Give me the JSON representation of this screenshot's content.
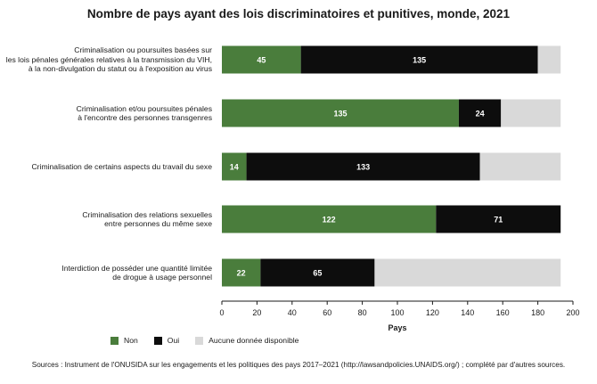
{
  "chart_data": {
    "type": "bar",
    "orientation": "horizontal",
    "stacked": true,
    "title": "Nombre de pays ayant des lois discriminatoires et punitives, monde, 2021",
    "xlabel": "Pays",
    "ylabel": "",
    "xlim": [
      0,
      200
    ],
    "xticks": [
      "0",
      "20",
      "40",
      "60",
      "80",
      "100",
      "120",
      "140",
      "160",
      "180",
      "200"
    ],
    "grid": false,
    "legend_position": "bottom",
    "categories": [
      [
        "Criminalisation ou poursuites basées sur",
        "les lois pénales générales relatives à la transmission du VIH,",
        "à la non-divulgation du statut ou à l'exposition au virus"
      ],
      [
        "Criminalisation et/ou poursuites pénales",
        "à l'encontre des personnes transgenres"
      ],
      [
        "Criminalisation de certains aspects du travail du sexe"
      ],
      [
        "Criminalisation des relations sexuelles",
        "entre personnes du même sexe"
      ],
      [
        "Interdiction de posséder une quantité limitée",
        "de drogue à usage personnel"
      ]
    ],
    "series": [
      {
        "name": "Non",
        "color": "#4a7d3c",
        "values": [
          45,
          135,
          14,
          122,
          22
        ]
      },
      {
        "name": "Oui",
        "color": "#0d0d0d",
        "values": [
          135,
          24,
          133,
          71,
          65
        ]
      },
      {
        "name": "Aucune donnée disponible",
        "color": "#d9d9d9",
        "values": [
          13,
          34,
          46,
          0,
          106
        ]
      }
    ]
  },
  "source_note": "Sources : Instrument de l'ONUSIDA sur les engagements et les politiques des pays 2017–2021 (http://lawsandpolicies.UNAIDS.org/) ; complété par d'autres sources."
}
